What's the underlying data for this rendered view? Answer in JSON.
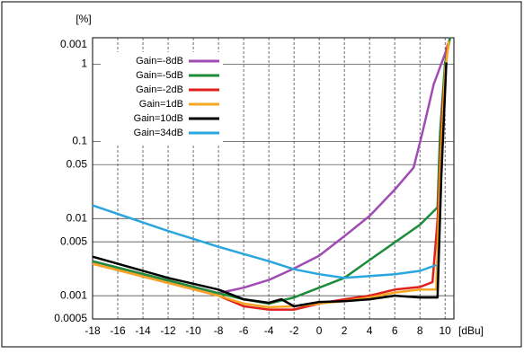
{
  "chart_data": {
    "type": "line",
    "ylabel": "[%]",
    "xlabel": "[dBu]",
    "top_label": "0.001",
    "log_y": true,
    "grid": true,
    "legend": "upper left",
    "xlim": [
      -18,
      10.7
    ],
    "xticks": [
      -18,
      -16,
      -14,
      -12,
      -10,
      -8,
      -6,
      -4,
      -2,
      0,
      2,
      4,
      6,
      8,
      10
    ],
    "ylim": [
      0.0005,
      2.2
    ],
    "yticks": [
      1,
      0.1,
      0.05,
      0.01,
      0.005,
      0.001,
      0.0005
    ],
    "series": [
      {
        "name": "Gain=-8dB",
        "color": "#a04cb4",
        "x": [
          -18,
          -8,
          -6,
          -4,
          -2,
          0,
          2,
          4,
          6,
          7.5,
          8.2,
          9.1,
          10,
          10.4
        ],
        "values": [
          0.0028,
          0.00108,
          0.00127,
          0.0016,
          0.00225,
          0.0033,
          0.0059,
          0.0108,
          0.0237,
          0.0456,
          0.13,
          0.55,
          1.37,
          2.2
        ]
      },
      {
        "name": "Gain=-5dB",
        "color": "#1e8c3a",
        "x": [
          -18,
          -8,
          -6,
          -4,
          -2,
          0,
          2,
          4,
          6,
          8,
          9.4,
          9.6,
          10,
          10.4
        ],
        "values": [
          0.0028,
          0.00108,
          0.0009,
          0.00079,
          0.00095,
          0.00127,
          0.0017,
          0.0029,
          0.0049,
          0.0083,
          0.014,
          0.13,
          1.05,
          2.2
        ]
      },
      {
        "name": "Gain=-2dB",
        "color": "#e0201c",
        "x": [
          -18,
          -8,
          -6,
          -4,
          -2,
          0,
          2,
          4,
          6,
          8,
          9,
          9.4,
          9.8,
          10.2
        ],
        "values": [
          0.0026,
          0.001,
          0.00073,
          0.00066,
          0.00066,
          0.00079,
          0.0009,
          0.001,
          0.0012,
          0.0013,
          0.0015,
          0.0095,
          0.28,
          1.8
        ]
      },
      {
        "name": "Gain=1dB",
        "color": "#f5a623",
        "x": [
          -18,
          -8,
          -6,
          -4,
          -2,
          0,
          2,
          4,
          6,
          8,
          9.3,
          9.6,
          10,
          10.3
        ],
        "values": [
          0.0026,
          0.001,
          0.00079,
          0.00071,
          0.00073,
          0.00079,
          0.00085,
          0.00095,
          0.0011,
          0.0012,
          0.0012,
          0.035,
          0.81,
          2
        ]
      },
      {
        "name": "Gain=10dB",
        "color": "#000000",
        "x": [
          -18,
          -12,
          -8,
          -6,
          -4,
          -3,
          -2,
          0,
          2,
          4,
          6,
          8,
          9.4,
          9.7,
          10.1
        ],
        "values": [
          0.0032,
          0.0017,
          0.0012,
          0.0009,
          0.00081,
          0.0009,
          0.00073,
          0.00083,
          0.00085,
          0.0009,
          0.001,
          0.00095,
          0.00095,
          0.035,
          1.05
        ]
      },
      {
        "name": "Gain=34dB",
        "color": "#2aa6de",
        "x": [
          -18,
          -12,
          -8,
          -4,
          -2,
          0,
          2,
          4,
          6,
          8,
          9,
          9.3
        ],
        "values": [
          0.0148,
          0.0069,
          0.0043,
          0.0028,
          0.0022,
          0.0019,
          0.0017,
          0.0018,
          0.0019,
          0.0021,
          0.0024,
          0.0025
        ]
      }
    ]
  }
}
